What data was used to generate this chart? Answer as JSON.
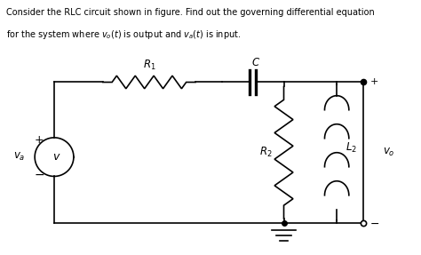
{
  "title_line1": "Consider the RLC circuit shown in figure. Find out the governing differential equation",
  "title_line2": "for the system where v_o(t) is output and v_a(t) is input.",
  "bg_color": "#ffffff",
  "line_color": "#000000",
  "text_color": "#000000",
  "fig_width": 4.74,
  "fig_height": 2.87,
  "dpi": 100
}
